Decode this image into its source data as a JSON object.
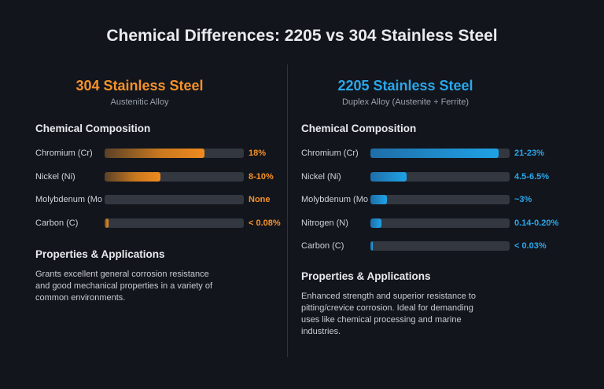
{
  "title": "Chemical Differences: 2205 vs 304 Stainless Steel",
  "colors": {
    "orange": "#f5922a",
    "blue": "#2aa7eb",
    "background": "#12151c"
  },
  "chart_data": [
    {
      "type": "bar",
      "title": "304 Stainless Steel",
      "subtitle": "Austenitic Alloy",
      "section": "Chemical Composition",
      "categories": [
        "Chromium (Cr)",
        "Nickel (Ni)",
        "Molybdenum (Mo",
        "Carbon (C)"
      ],
      "value_labels": [
        "18%",
        "8-10%",
        "None",
        "< 0.08%"
      ],
      "fill_fractions": [
        0.72,
        0.4,
        0.0,
        0.03
      ],
      "color": "#f5922a",
      "properties_heading": "Properties & Applications",
      "properties_text": "Grants excellent general corrosion resistance and good mechanical properties in a variety of common environments."
    },
    {
      "type": "bar",
      "title": "2205 Stainless Steel",
      "subtitle": "Duplex Alloy (Austenite + Ferrite)",
      "section": "Chemical Composition",
      "categories": [
        "Chromium (Cr)",
        "Nickel (Ni)",
        "Molybdenum (Mo",
        "Nitrogen (N)",
        "Carbon (C)"
      ],
      "value_labels": [
        "21-23%",
        "4.5-6.5%",
        "~3%",
        "0.14-0.20%",
        "< 0.03%"
      ],
      "fill_fractions": [
        0.92,
        0.26,
        0.12,
        0.08,
        0.015
      ],
      "color": "#2aa7eb",
      "properties_heading": "Properties & Applications",
      "properties_text": "Enhanced strength and superior resistance to pitting/crevice corrosion. Ideal for demanding uses like chemical processing and marine industries."
    }
  ]
}
